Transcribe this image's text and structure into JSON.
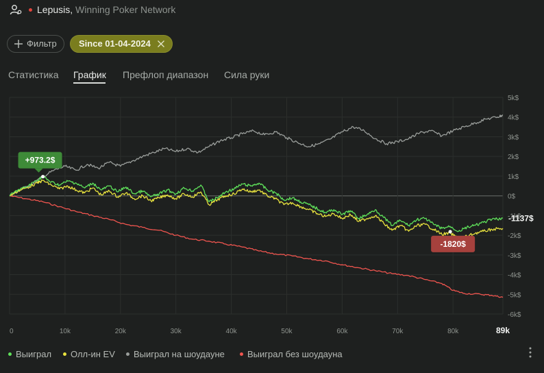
{
  "header": {
    "player": "Lepusis",
    "separator": ",",
    "network": "Winning Poker Network",
    "dot_color": "#e0443c",
    "user_icon": "user-settings-icon"
  },
  "filters": {
    "filter_label": "Фильтр",
    "filter_icon": "plus-icon",
    "date_chip_label": "Since 01-04-2024",
    "date_chip_close_icon": "close-icon"
  },
  "tabs": [
    {
      "label": "Статистика",
      "active": false
    },
    {
      "label": "График",
      "active": true
    },
    {
      "label": "Префлоп диапазон",
      "active": false
    },
    {
      "label": "Сила руки",
      "active": false
    }
  ],
  "chart_data": {
    "type": "line",
    "x_unit_labels": [
      "0",
      "10k",
      "20k",
      "30k",
      "40k",
      "50k",
      "60k",
      "70k",
      "80k"
    ],
    "x_end_label": "89k",
    "xlim": [
      0,
      89000
    ],
    "y_tick_labels": [
      "5k$",
      "4k$",
      "3k$",
      "2k$",
      "1k$",
      "0$",
      "-1k$",
      "-2k$",
      "-3k$",
      "-4k$",
      "-5k$",
      "-6k$"
    ],
    "ylim": [
      -6000,
      5000
    ],
    "grid": true,
    "zero_line": true,
    "legend_position": "bottom-left",
    "series": [
      {
        "name": "Выиграл",
        "color": "#5fe05a",
        "points": [
          [
            0,
            0
          ],
          [
            1500,
            300
          ],
          [
            3000,
            450
          ],
          [
            5000,
            800
          ],
          [
            6000,
            973
          ],
          [
            7500,
            700
          ],
          [
            9000,
            550
          ],
          [
            10500,
            750
          ],
          [
            12000,
            650
          ],
          [
            13500,
            400
          ],
          [
            15000,
            650
          ],
          [
            16500,
            300
          ],
          [
            18000,
            500
          ],
          [
            19500,
            200
          ],
          [
            21000,
            450
          ],
          [
            22500,
            100
          ],
          [
            24000,
            250
          ],
          [
            25500,
            -50
          ],
          [
            27000,
            100
          ],
          [
            28500,
            300
          ],
          [
            30000,
            100
          ],
          [
            31500,
            400
          ],
          [
            33000,
            250
          ],
          [
            34500,
            550
          ],
          [
            36000,
            -300
          ],
          [
            37500,
            -100
          ],
          [
            39000,
            200
          ],
          [
            40500,
            350
          ],
          [
            42000,
            600
          ],
          [
            43500,
            500
          ],
          [
            45000,
            650
          ],
          [
            46500,
            300
          ],
          [
            48000,
            150
          ],
          [
            49500,
            -200
          ],
          [
            51000,
            -100
          ],
          [
            52500,
            -300
          ],
          [
            54000,
            -450
          ],
          [
            55500,
            -650
          ],
          [
            57000,
            -850
          ],
          [
            58500,
            -700
          ],
          [
            60000,
            -950
          ],
          [
            61500,
            -750
          ],
          [
            63000,
            -1150
          ],
          [
            64500,
            -950
          ],
          [
            66000,
            -700
          ],
          [
            67500,
            -1100
          ],
          [
            69000,
            -1500
          ],
          [
            70500,
            -1250
          ],
          [
            72000,
            -1500
          ],
          [
            73500,
            -1200
          ],
          [
            75000,
            -1150
          ],
          [
            76500,
            -1450
          ],
          [
            78000,
            -1650
          ],
          [
            79500,
            -1550
          ],
          [
            81000,
            -1800
          ],
          [
            82500,
            -1600
          ],
          [
            84000,
            -1500
          ],
          [
            85500,
            -1350
          ],
          [
            87000,
            -1200
          ],
          [
            89000,
            -1137
          ]
        ]
      },
      {
        "name": "Олл-ин EV",
        "color": "#e8e23e",
        "points": [
          [
            0,
            0
          ],
          [
            1500,
            250
          ],
          [
            3000,
            400
          ],
          [
            5000,
            650
          ],
          [
            6000,
            780
          ],
          [
            7500,
            550
          ],
          [
            9000,
            350
          ],
          [
            10500,
            500
          ],
          [
            12000,
            300
          ],
          [
            13500,
            150
          ],
          [
            15000,
            400
          ],
          [
            16500,
            50
          ],
          [
            18000,
            250
          ],
          [
            19500,
            -50
          ],
          [
            21000,
            150
          ],
          [
            22500,
            -150
          ],
          [
            24000,
            0
          ],
          [
            25500,
            -250
          ],
          [
            27000,
            -100
          ],
          [
            28500,
            50
          ],
          [
            30000,
            -150
          ],
          [
            31500,
            100
          ],
          [
            33000,
            -50
          ],
          [
            34500,
            200
          ],
          [
            36000,
            -450
          ],
          [
            37500,
            -200
          ],
          [
            39000,
            0
          ],
          [
            40500,
            100
          ],
          [
            42000,
            350
          ],
          [
            43500,
            200
          ],
          [
            45000,
            300
          ],
          [
            46500,
            0
          ],
          [
            48000,
            -150
          ],
          [
            49500,
            -450
          ],
          [
            51000,
            -350
          ],
          [
            52500,
            -550
          ],
          [
            54000,
            -700
          ],
          [
            55500,
            -900
          ],
          [
            57000,
            -1050
          ],
          [
            58500,
            -900
          ],
          [
            60000,
            -1150
          ],
          [
            61500,
            -950
          ],
          [
            63000,
            -1300
          ],
          [
            64500,
            -1150
          ],
          [
            66000,
            -1000
          ],
          [
            67500,
            -1400
          ],
          [
            69000,
            -1750
          ],
          [
            70500,
            -1500
          ],
          [
            72000,
            -1800
          ],
          [
            73500,
            -1500
          ],
          [
            75000,
            -1450
          ],
          [
            76500,
            -1700
          ],
          [
            78000,
            -1950
          ],
          [
            79500,
            -1900
          ],
          [
            81000,
            -2150
          ],
          [
            82500,
            -2050
          ],
          [
            84000,
            -1900
          ],
          [
            85500,
            -1800
          ],
          [
            87000,
            -1700
          ],
          [
            89000,
            -1650
          ]
        ]
      },
      {
        "name": "Выиграл на шоудауне",
        "color": "#9a9e9b",
        "points": [
          [
            0,
            0
          ],
          [
            2000,
            300
          ],
          [
            4000,
            600
          ],
          [
            6000,
            973
          ],
          [
            8000,
            1300
          ],
          [
            10000,
            1500
          ],
          [
            12000,
            1300
          ],
          [
            14000,
            1600
          ],
          [
            16000,
            1400
          ],
          [
            18000,
            1700
          ],
          [
            20000,
            1500
          ],
          [
            22000,
            1750
          ],
          [
            24000,
            2000
          ],
          [
            26000,
            2200
          ],
          [
            28000,
            2400
          ],
          [
            30000,
            2250
          ],
          [
            32000,
            2400
          ],
          [
            34000,
            2200
          ],
          [
            36000,
            2500
          ],
          [
            38000,
            2800
          ],
          [
            40000,
            2950
          ],
          [
            42000,
            3150
          ],
          [
            44000,
            3300
          ],
          [
            46000,
            3100
          ],
          [
            48000,
            3250
          ],
          [
            50000,
            2950
          ],
          [
            52000,
            2700
          ],
          [
            54000,
            2500
          ],
          [
            56000,
            2650
          ],
          [
            58000,
            2900
          ],
          [
            60000,
            3250
          ],
          [
            62000,
            3500
          ],
          [
            64000,
            3300
          ],
          [
            66000,
            2900
          ],
          [
            68000,
            2650
          ],
          [
            70000,
            2750
          ],
          [
            72000,
            2900
          ],
          [
            74000,
            3200
          ],
          [
            76000,
            3300
          ],
          [
            78000,
            3050
          ],
          [
            80000,
            3300
          ],
          [
            82000,
            3500
          ],
          [
            84000,
            3700
          ],
          [
            86000,
            3900
          ],
          [
            88000,
            4000
          ],
          [
            89000,
            4100
          ]
        ]
      },
      {
        "name": "Выиграл без шоудауна",
        "color": "#f0554f",
        "points": [
          [
            0,
            0
          ],
          [
            3000,
            -150
          ],
          [
            6000,
            -300
          ],
          [
            9000,
            -550
          ],
          [
            12000,
            -800
          ],
          [
            15000,
            -1000
          ],
          [
            18000,
            -1200
          ],
          [
            21000,
            -1450
          ],
          [
            24000,
            -1600
          ],
          [
            27000,
            -1750
          ],
          [
            30000,
            -2000
          ],
          [
            33000,
            -2200
          ],
          [
            36000,
            -2300
          ],
          [
            39000,
            -2450
          ],
          [
            42000,
            -2600
          ],
          [
            45000,
            -2800
          ],
          [
            48000,
            -2950
          ],
          [
            51000,
            -3050
          ],
          [
            54000,
            -3200
          ],
          [
            57000,
            -3300
          ],
          [
            60000,
            -3500
          ],
          [
            63000,
            -3650
          ],
          [
            66000,
            -3800
          ],
          [
            69000,
            -3950
          ],
          [
            72000,
            -4050
          ],
          [
            75000,
            -4250
          ],
          [
            78000,
            -4450
          ],
          [
            80000,
            -4800
          ],
          [
            82000,
            -4950
          ],
          [
            85000,
            -5000
          ],
          [
            87000,
            -5050
          ],
          [
            89000,
            -5150
          ]
        ]
      }
    ],
    "annotations": [
      {
        "label": "+973.2$",
        "x": 6000,
        "y": 973,
        "color": "#3e8b38"
      },
      {
        "label": "-1820$",
        "x": 79500,
        "y": -1820,
        "color": "#a6413d"
      }
    ],
    "end_label": "-1137$"
  },
  "legend": [
    {
      "label": "Выиграл",
      "color": "#5fe05a"
    },
    {
      "label": "Олл-ин EV",
      "color": "#e8e23e"
    },
    {
      "label": "Выиграл на шоудауне",
      "color": "#9a9e9b"
    },
    {
      "label": "Выиграл без шоудауна",
      "color": "#f0554f"
    }
  ],
  "menu_icon": "kebab-menu-icon"
}
